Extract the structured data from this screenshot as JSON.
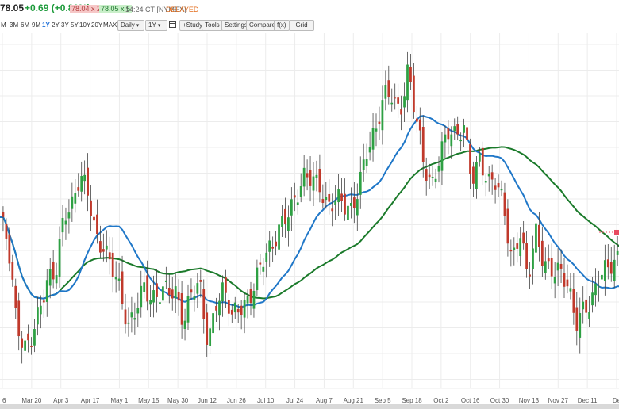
{
  "quote": {
    "price": "78.05",
    "change": "+0.69 (+0.89%)",
    "bid": "78.04 x 21",
    "ask": "78.05 x 5",
    "time": "14:24 CT [NYMEX]",
    "status": "DELAYED"
  },
  "toolbar": {
    "periods": [
      "M",
      "3M",
      "6M",
      "9M",
      "1Y",
      "2Y",
      "3Y",
      "5Y",
      "10Y",
      "20Y",
      "MAX"
    ],
    "active_period": "1Y",
    "interval": "Daily",
    "range": "1Y",
    "buttons": [
      "+Study",
      "Tools",
      "Settings",
      "Compare",
      "f(x)",
      "Grid"
    ]
  },
  "colors": {
    "up": "#2ea043",
    "down": "#c0392b",
    "ma_fast": "#1f77c8",
    "ma_slow": "#1a7a2a",
    "last_price": "#e84a5f"
  },
  "chart_data": {
    "type": "candlestick",
    "interval": "daily",
    "x_tick_labels": [
      "6",
      "Mar 20",
      "Apr 3",
      "Apr 17",
      "May 1",
      "May 15",
      "May 30",
      "Jun 12",
      "Jun 26",
      "Jul 10",
      "Jul 24",
      "Aug 7",
      "Aug 21",
      "Sep 5",
      "Sep 18",
      "Oct 2",
      "Oct 16",
      "Oct 30",
      "Nov 13",
      "Nov 27",
      "Dec 11",
      "De"
    ],
    "ylim": [
      63,
      96
    ],
    "grid": true,
    "close_path": [
      [
        "Mar 6",
        79.5
      ],
      [
        "Mar 10",
        76.5
      ],
      [
        "Mar 14",
        69.5
      ],
      [
        "Mar 17",
        67.2
      ],
      [
        "Mar 20",
        68.5
      ],
      [
        "Mar 23",
        70.5
      ],
      [
        "Mar 27",
        72.8
      ],
      [
        "Mar 30",
        74.3
      ],
      [
        "Apr 3",
        80.5
      ],
      [
        "Apr 7",
        80.8
      ],
      [
        "Apr 12",
        83.0
      ],
      [
        "Apr 17",
        81.5
      ],
      [
        "Apr 21",
        77.8
      ],
      [
        "Apr 25",
        77.1
      ],
      [
        "Apr 27",
        74.8
      ],
      [
        "May 1",
        71.8
      ],
      [
        "May 3",
        68.5
      ],
      [
        "May 5",
        71.3
      ],
      [
        "May 10",
        73.4
      ],
      [
        "May 15",
        71.0
      ],
      [
        "May 19",
        71.6
      ],
      [
        "May 23",
        72.8
      ],
      [
        "May 26",
        72.7
      ],
      [
        "May 30",
        69.5
      ],
      [
        "Jun 2",
        72.0
      ],
      [
        "Jun 7",
        72.5
      ],
      [
        "Jun 12",
        67.5
      ],
      [
        "Jun 16",
        71.8
      ],
      [
        "Jun 21",
        72.5
      ],
      [
        "Jun 26",
        69.4
      ],
      [
        "Jun 30",
        70.6
      ],
      [
        "Jul 5",
        71.8
      ],
      [
        "Jul 10",
        73.9
      ],
      [
        "Jul 14",
        75.4
      ],
      [
        "Jul 19",
        75.9
      ],
      [
        "Jul 24",
        78.7
      ],
      [
        "Jul 28",
        80.6
      ],
      [
        "Aug 1",
        81.4
      ],
      [
        "Aug 4",
        82.8
      ],
      [
        "Aug 7",
        82.9
      ],
      [
        "Aug 10",
        82.8
      ],
      [
        "Aug 15",
        80.9
      ],
      [
        "Aug 18",
        81.3
      ],
      [
        "Aug 21",
        80.1
      ],
      [
        "Aug 25",
        79.8
      ],
      [
        "Aug 30",
        83.6
      ],
      [
        "Sep 5",
        86.7
      ],
      [
        "Sep 11",
        87.3
      ],
      [
        "Sep 15",
        90.8
      ],
      [
        "Sep 18",
        91.5
      ],
      [
        "Sep 22",
        90.0
      ],
      [
        "Sep 27",
        93.7
      ],
      [
        "Oct 2",
        88.8
      ],
      [
        "Oct 4",
        84.2
      ],
      [
        "Oct 6",
        82.8
      ],
      [
        "Oct 10",
        86.0
      ],
      [
        "Oct 13",
        87.7
      ],
      [
        "Oct 16",
        86.6
      ],
      [
        "Oct 20",
        88.1
      ],
      [
        "Oct 24",
        83.7
      ],
      [
        "Oct 27",
        85.5
      ],
      [
        "Oct 30",
        82.3
      ],
      [
        "Nov 2",
        82.5
      ],
      [
        "Nov 6",
        80.8
      ],
      [
        "Nov 9",
        75.7
      ],
      [
        "Nov 13",
        78.3
      ],
      [
        "Nov 16",
        72.9
      ],
      [
        "Nov 20",
        77.8
      ],
      [
        "Nov 24",
        75.5
      ],
      [
        "Nov 27",
        74.9
      ],
      [
        "Nov 30",
        74.1
      ],
      [
        "Dec 4",
        72.3
      ],
      [
        "Dec 7",
        69.3
      ],
      [
        "Dec 11",
        71.3
      ],
      [
        "Dec 14",
        71.6
      ],
      [
        "Dec 18",
        73.5
      ],
      [
        "Dec 21",
        74.1
      ],
      [
        "Dec 27",
        75.6
      ],
      [
        "Dec 29",
        76.4
      ]
    ],
    "series": [
      {
        "values": [],
        "kind": "moving-average-fast"
      },
      {
        "values": [],
        "kind": "moving-average-slow"
      }
    ],
    "last_price": 78.05
  }
}
